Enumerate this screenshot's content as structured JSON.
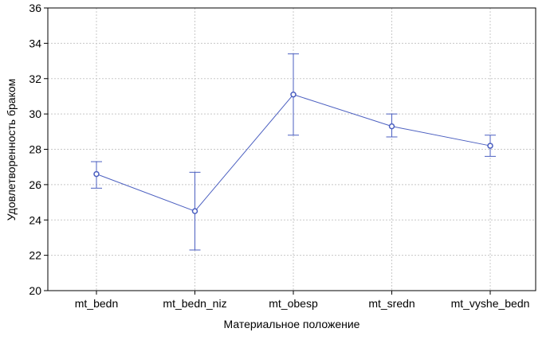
{
  "chart_data": {
    "type": "line",
    "title": "",
    "xlabel": "Материальное положение",
    "ylabel": "Удовлетворенность браком",
    "categories": [
      "mt_bedn",
      "mt_bedn_niz",
      "mt_obesp",
      "mt_sredn",
      "mt_vyshe_bedn"
    ],
    "series": [
      {
        "values": [
          26.6,
          24.5,
          31.1,
          29.3,
          28.2
        ],
        "error_low": [
          25.8,
          22.3,
          28.8,
          28.7,
          27.6
        ],
        "error_high": [
          27.3,
          26.7,
          33.4,
          30.0,
          28.8
        ]
      }
    ],
    "ylim": [
      20,
      36
    ],
    "yticks": [
      20,
      22,
      24,
      26,
      28,
      30,
      32,
      34,
      36
    ],
    "grid": true,
    "legend": "none",
    "colors": {
      "series": "#4b5fc0",
      "grid": "#c8c8c8",
      "axis": "#000000"
    }
  }
}
